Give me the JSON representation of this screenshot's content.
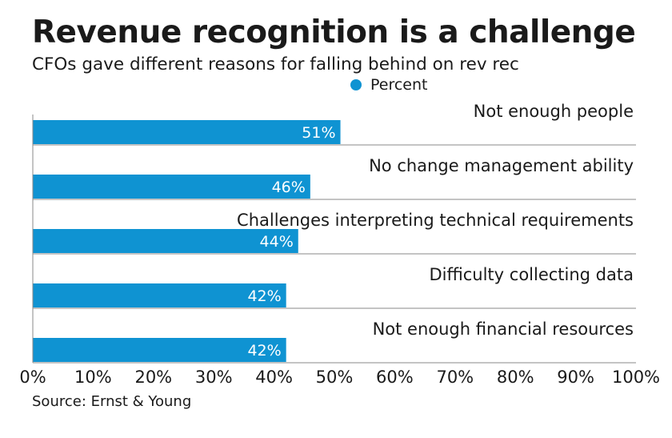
{
  "header": {
    "title": "Revenue recognition is a challenge",
    "subtitle": "CFOs gave different reasons for falling behind on rev rec"
  },
  "legend": {
    "label": "Percent"
  },
  "colors": {
    "bar": "#0f93d2",
    "bar_label": "#ffffff",
    "text": "#1a1a1a",
    "rule": "#8a8a8a"
  },
  "chart_data": {
    "type": "bar",
    "orientation": "horizontal",
    "title": "Revenue recognition is a challenge",
    "subtitle": "CFOs gave different reasons for falling behind on rev rec",
    "categories": [
      "Not enough people",
      "No change management ability",
      "Challenges interpreting technical requirements",
      "Difficulty collecting data",
      "Not enough financial resources"
    ],
    "series": [
      {
        "name": "Percent",
        "values": [
          51,
          46,
          44,
          42,
          42
        ]
      }
    ],
    "value_labels": [
      "51%",
      "46%",
      "44%",
      "42%",
      "42%"
    ],
    "xlim": [
      0,
      100
    ],
    "xticks": [
      0,
      10,
      20,
      30,
      40,
      50,
      60,
      70,
      80,
      90,
      100
    ],
    "xtick_labels": [
      "0%",
      "10%",
      "20%",
      "30%",
      "40%",
      "50%",
      "60%",
      "70%",
      "80%",
      "90%",
      "100%"
    ],
    "xlabel": "",
    "ylabel": "",
    "legend_position": "top-center",
    "grid": false
  },
  "footer": {
    "source": "Source: Ernst & Young"
  }
}
